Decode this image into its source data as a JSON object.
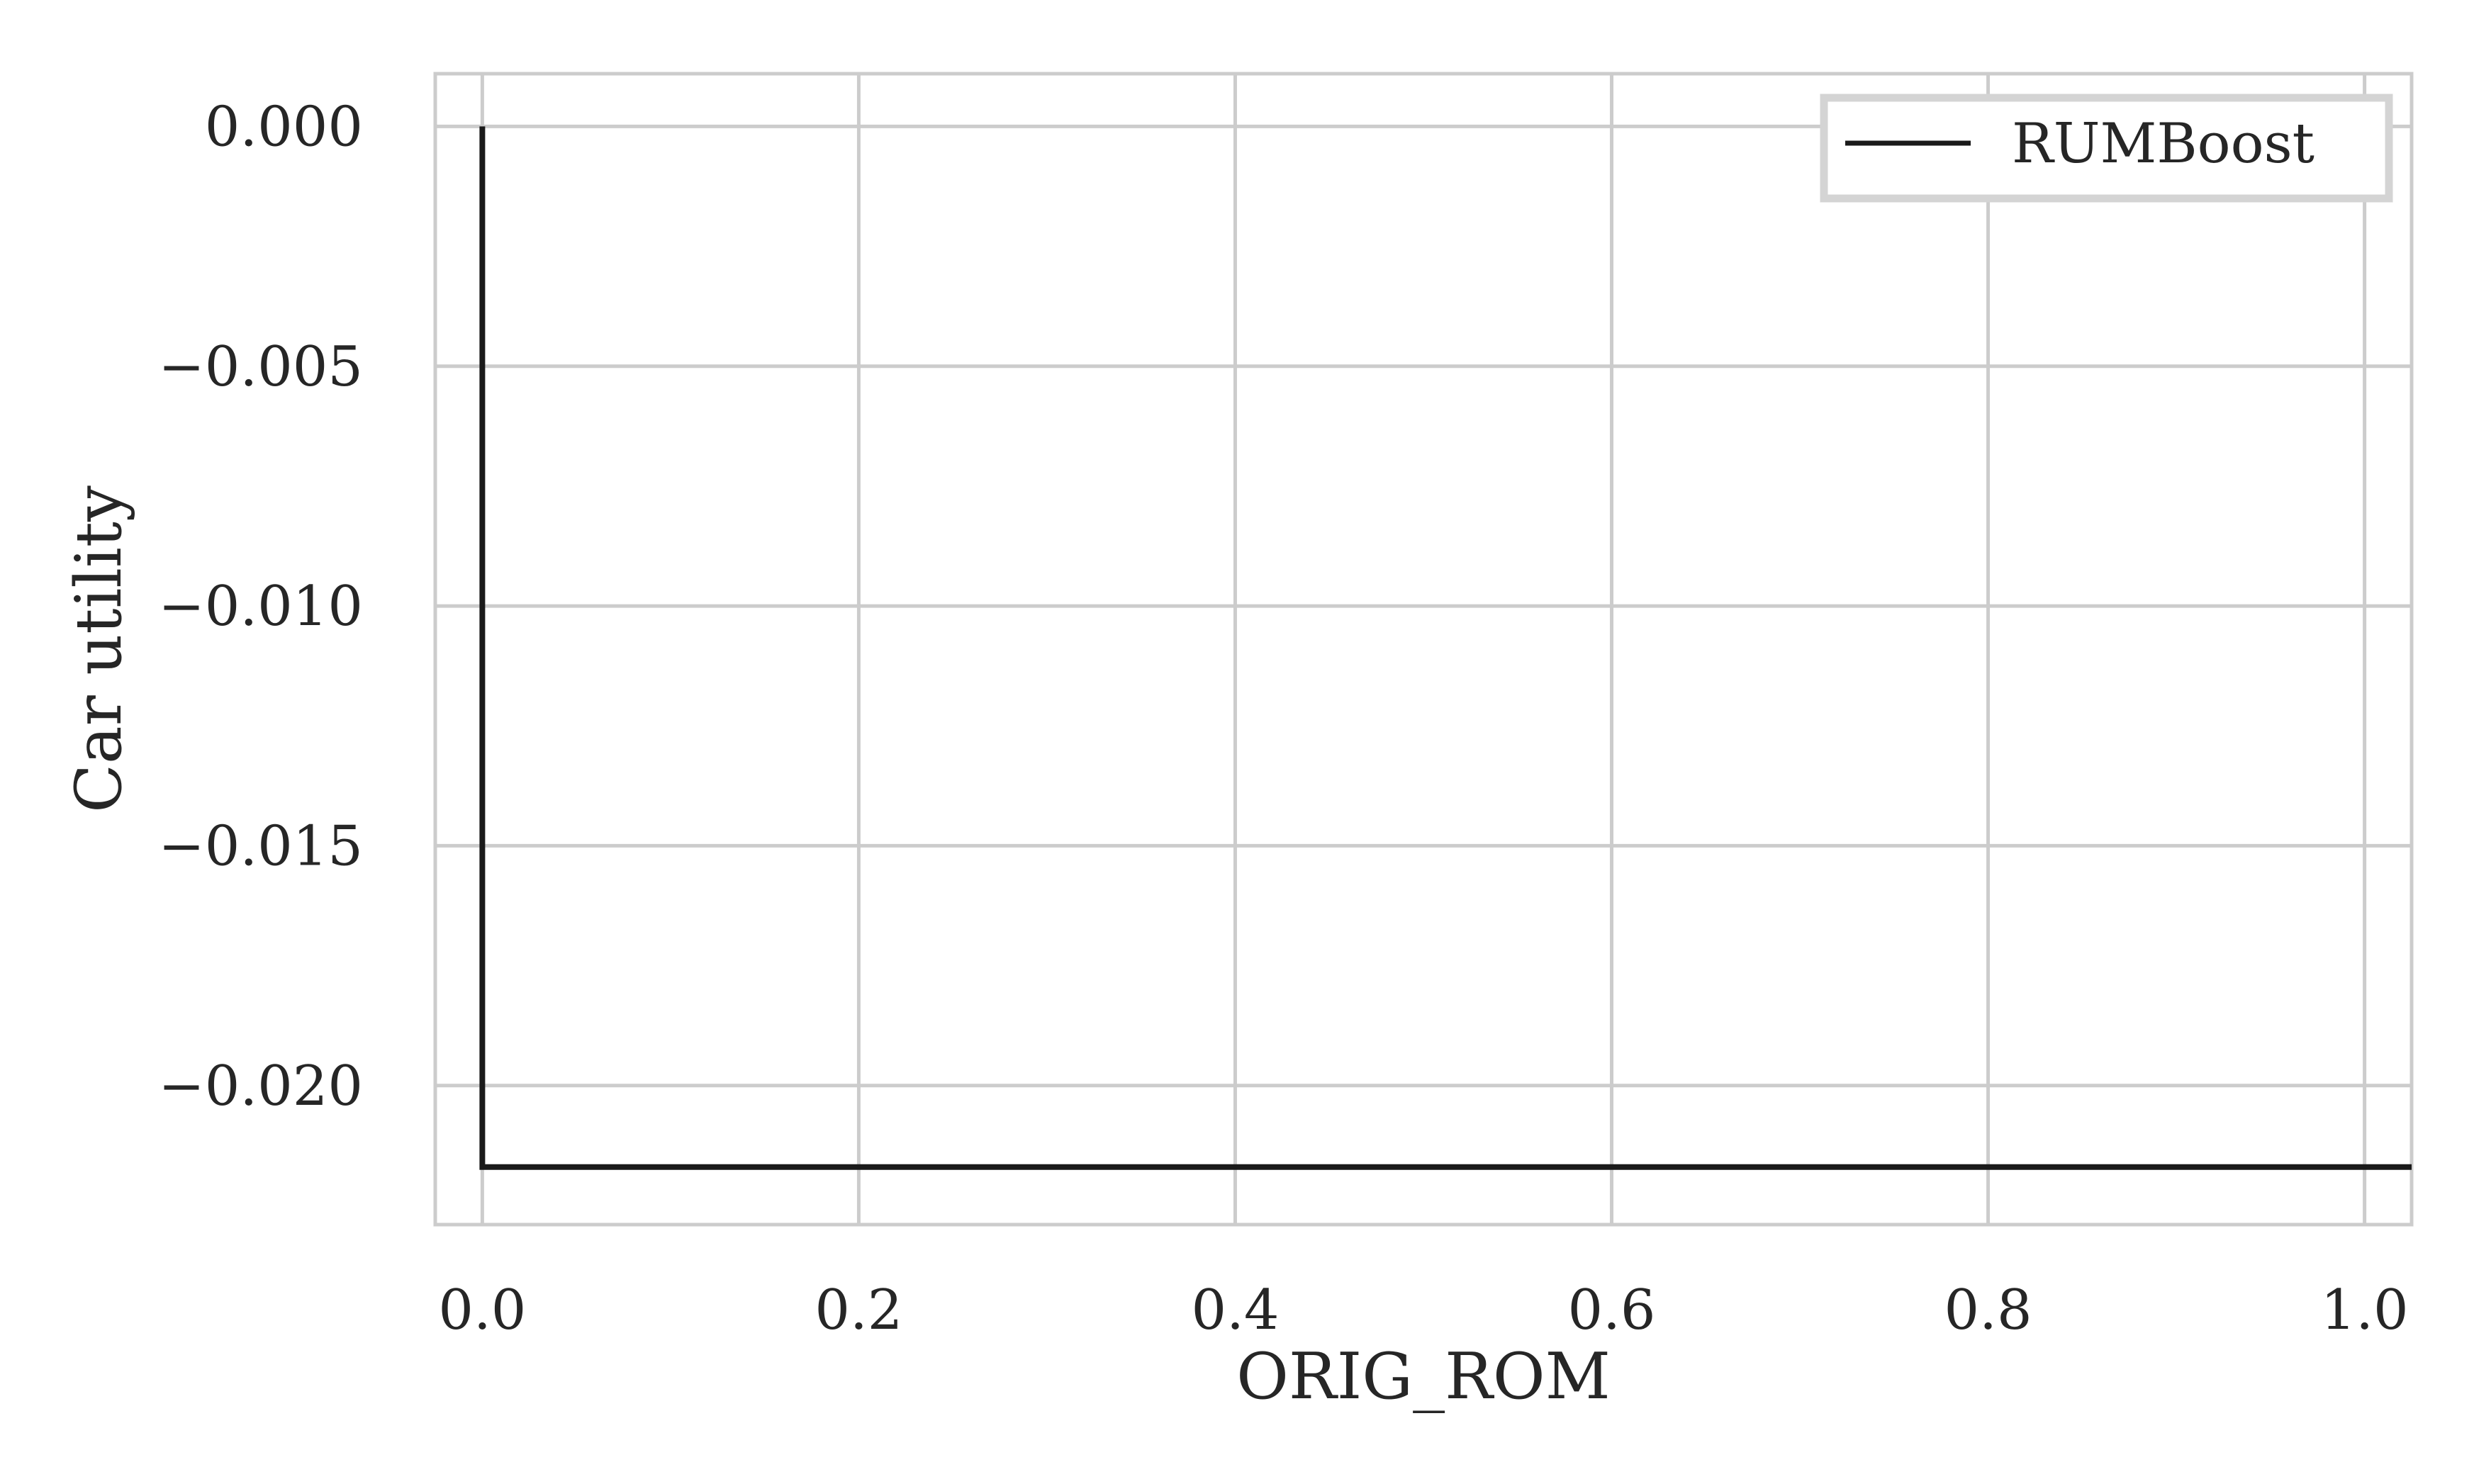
{
  "chart_data": {
    "type": "line",
    "title": "",
    "xlabel": "ORIG_ROM",
    "ylabel": "Car utility",
    "xlim": [
      -0.025,
      1.025
    ],
    "ylim": [
      -0.0229,
      0.0011
    ],
    "x_ticks": [
      0.0,
      0.2,
      0.4,
      0.6,
      0.8,
      1.0
    ],
    "x_tick_labels": [
      "0.0",
      "0.2",
      "0.4",
      "0.6",
      "0.8",
      "1.0"
    ],
    "y_ticks": [
      0.0,
      -0.005,
      -0.01,
      -0.015,
      -0.02
    ],
    "y_tick_labels": [
      "0.000",
      "−0.005",
      "−0.010",
      "−0.015",
      "−0.020"
    ],
    "grid": true,
    "legend_position": "upper right",
    "series": [
      {
        "name": "RUMBoost",
        "color": "#1a1a1a",
        "step": true,
        "x": [
          0.0,
          0.0,
          1.025
        ],
        "y": [
          0.0,
          -0.0217,
          -0.0217
        ]
      }
    ]
  },
  "colors": {
    "grid": "#cccccc",
    "axes_edge": "#cccccc",
    "line": "#1a1a1a",
    "text": "#262626",
    "legend_frame": "#d4d4d4",
    "background": "#ffffff"
  }
}
